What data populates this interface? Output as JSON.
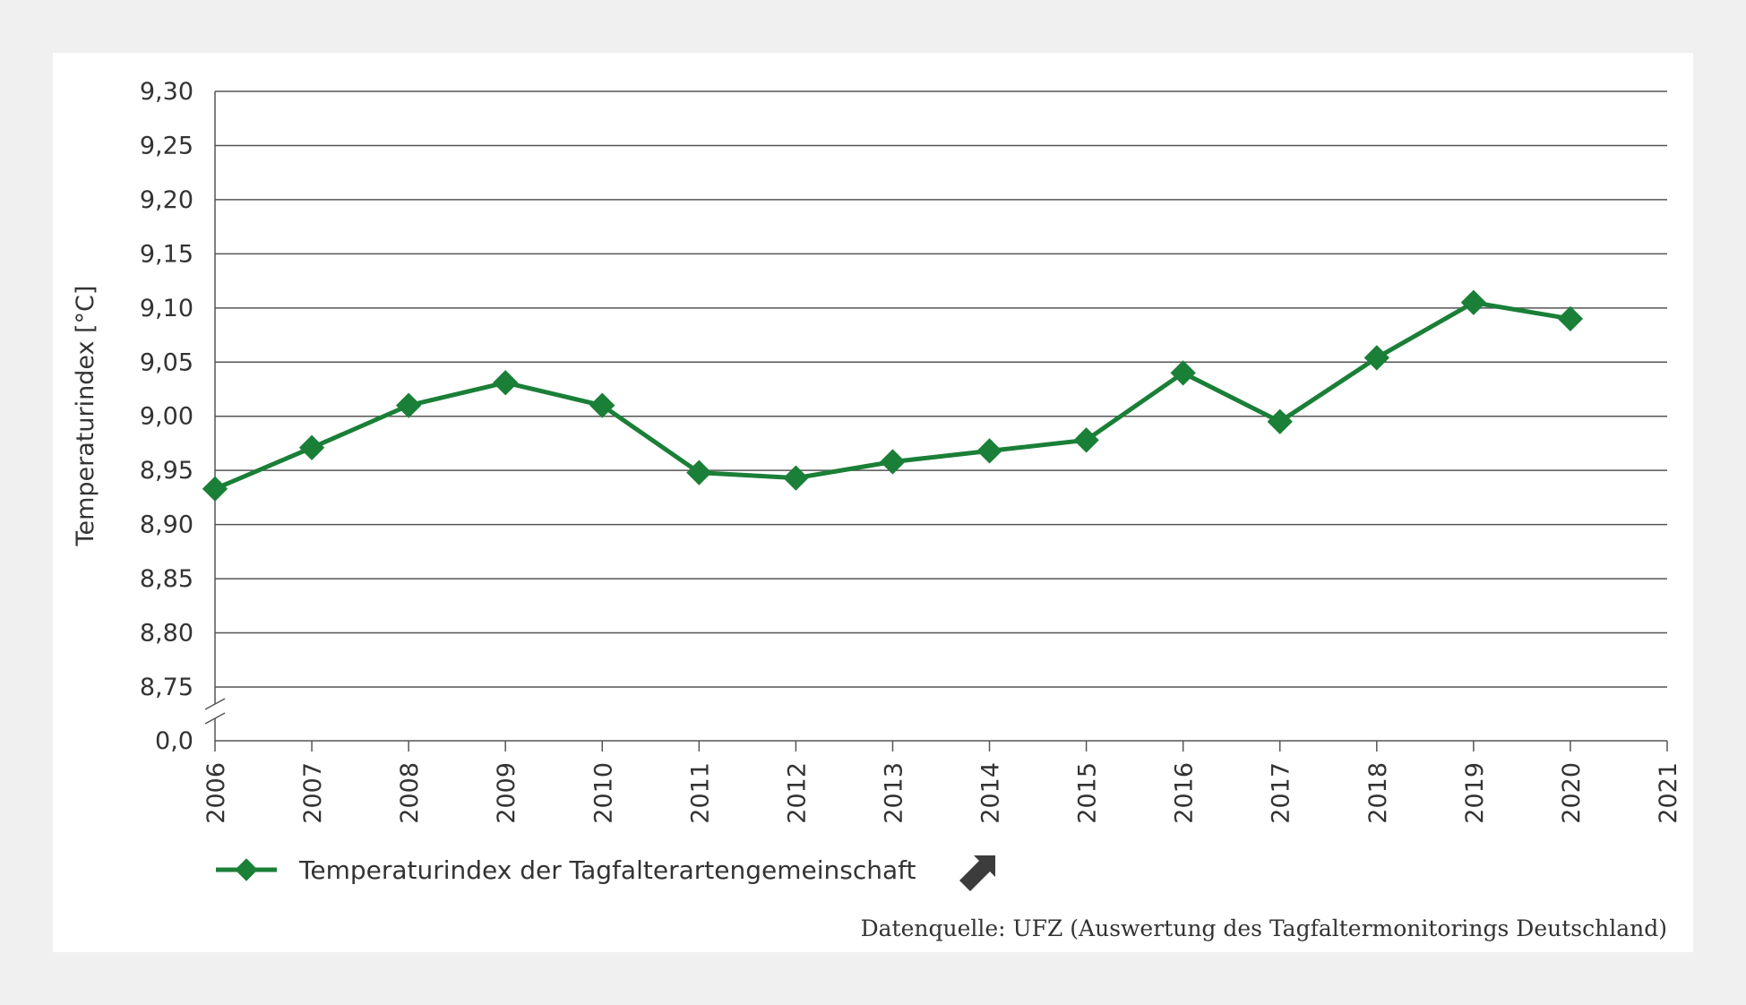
{
  "chart_data": {
    "type": "line",
    "title": "",
    "xlabel": "",
    "ylabel": "Temperaturindex [°C]",
    "x": [
      2006,
      2007,
      2008,
      2009,
      2010,
      2011,
      2012,
      2013,
      2014,
      2015,
      2016,
      2017,
      2018,
      2019,
      2020
    ],
    "x_ticks": [
      "2006",
      "2007",
      "2008",
      "2009",
      "2010",
      "2011",
      "2012",
      "2013",
      "2014",
      "2015",
      "2016",
      "2017",
      "2018",
      "2019",
      "2020",
      "2021"
    ],
    "xlim": [
      2006,
      2021
    ],
    "series": [
      {
        "name": "Temperaturindex der Tagfalterartengemeinschaft",
        "color": "#1a7f37",
        "marker": "diamond",
        "values": [
          8.933,
          8.971,
          9.01,
          9.031,
          9.01,
          8.948,
          8.943,
          8.958,
          8.968,
          8.978,
          9.04,
          8.995,
          9.054,
          9.105,
          9.09
        ]
      }
    ],
    "y_ticks": [
      "9,30",
      "9,25",
      "9,20",
      "9,15",
      "9,10",
      "9,05",
      "9,00",
      "8,95",
      "8,90",
      "8,85",
      "8,80",
      "8,75"
    ],
    "y_tick_values": [
      9.3,
      9.25,
      9.2,
      9.15,
      9.1,
      9.05,
      9.0,
      8.95,
      8.9,
      8.85,
      8.8,
      8.75
    ],
    "y_break_label": "0,0",
    "ylim": [
      8.75,
      9.3
    ],
    "y_axis_break": true,
    "grid": true,
    "legend_position": "bottom-left",
    "trend_icon": "arrow-up-right-icon",
    "source": "Datenquelle: UFZ (Auswertung des Tagfaltermonitorings Deutschland)"
  },
  "colors": {
    "background": "#f0f0f0",
    "card": "#ffffff",
    "series": "#1a7f37",
    "grid": "#555555",
    "text": "#333333",
    "trend_icon": "#3c3c3c"
  }
}
